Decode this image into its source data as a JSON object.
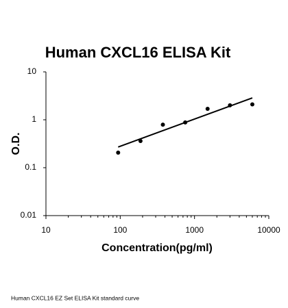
{
  "chart_data": {
    "type": "scatter",
    "title": "Human CXCL16 ELISA Kit",
    "x_label": "Concentration(pg/ml)",
    "y_label": "O.D.",
    "x": [
      93.75,
      187.5,
      375,
      750,
      1500,
      3000,
      6000
    ],
    "values": [
      0.206,
      0.36,
      0.79,
      0.88,
      1.69,
      2.0,
      2.1
    ],
    "color": "#000000",
    "trendline": {
      "x": [
        93.75,
        6000
      ],
      "y": [
        0.27,
        2.86
      ],
      "color": "#000000"
    },
    "xscale": "log",
    "yscale": "log",
    "xlim": [
      10,
      10000
    ],
    "ylim": [
      0.01,
      10
    ],
    "xticks": [
      10,
      100,
      1000,
      10000
    ],
    "yticks": [
      0.01,
      0.1,
      1,
      10
    ],
    "grid": false
  },
  "footer": "Human CXCL16 EZ Set ELISA Kit standard curve"
}
